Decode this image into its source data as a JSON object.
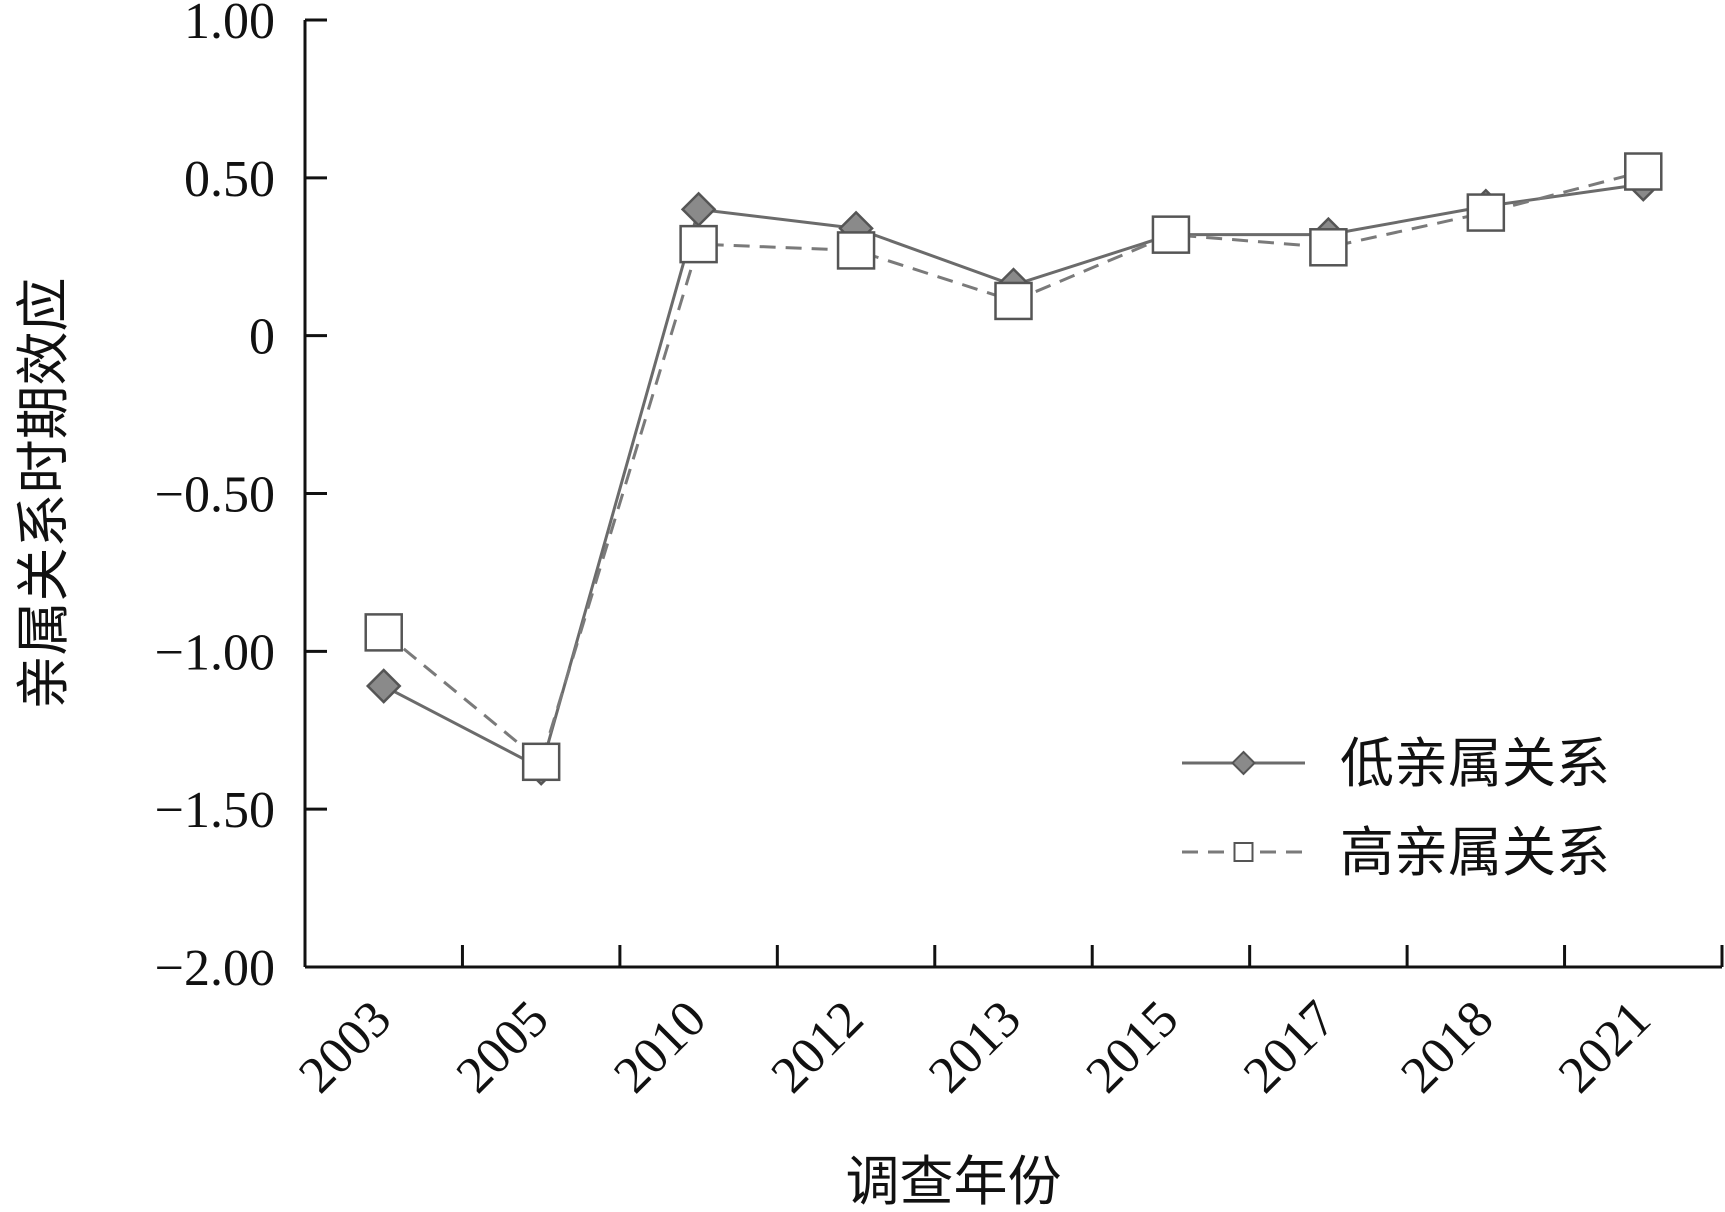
{
  "chart_data": {
    "type": "line",
    "title": "",
    "xlabel": "调查年份",
    "ylabel": "亲属关系时期效应",
    "categories": [
      "2003",
      "2005",
      "2010",
      "2012",
      "2013",
      "2015",
      "2017",
      "2018",
      "2021"
    ],
    "ylim": [
      -2.0,
      1.0
    ],
    "yticks": [
      1.0,
      0.5,
      0,
      -0.5,
      -1.0,
      -1.5,
      -2.0
    ],
    "ytick_labels": [
      "1.00",
      "0.50",
      "0",
      "−0.50",
      "−1.00",
      "−1.50",
      "−2.00"
    ],
    "grid": false,
    "legend_position": "bottom-right",
    "series": [
      {
        "name": "低亲属关系",
        "values": [
          -1.11,
          -1.37,
          0.4,
          0.34,
          0.16,
          0.32,
          0.32,
          0.41,
          0.48
        ],
        "line_style": "solid",
        "marker": "diamond",
        "color": "#6b6b6b",
        "marker_fill": "#8a8a8a"
      },
      {
        "name": "高亲属关系",
        "values": [
          -0.94,
          -1.35,
          0.29,
          0.27,
          0.11,
          0.32,
          0.28,
          0.39,
          0.52
        ],
        "line_style": "dashed",
        "marker": "square",
        "color": "#7a7a7a",
        "marker_fill": "#ffffff"
      }
    ]
  }
}
